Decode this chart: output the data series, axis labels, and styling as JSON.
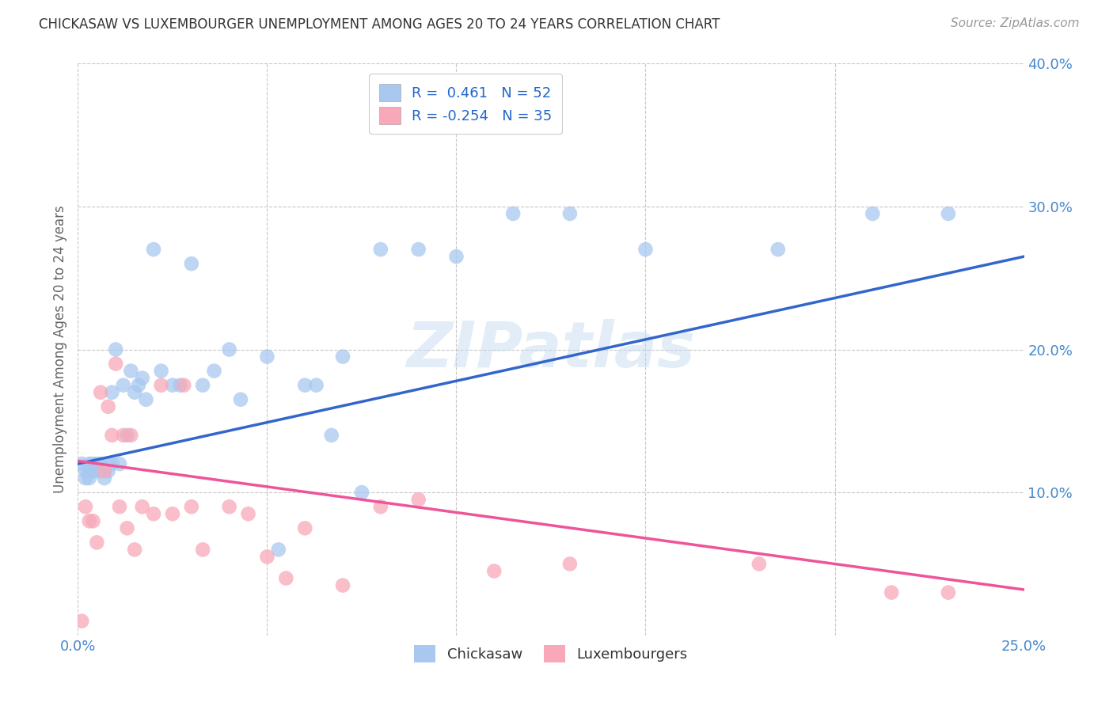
{
  "title": "CHICKASAW VS LUXEMBOURGER UNEMPLOYMENT AMONG AGES 20 TO 24 YEARS CORRELATION CHART",
  "source": "Source: ZipAtlas.com",
  "ylabel": "Unemployment Among Ages 20 to 24 years",
  "xlim": [
    0.0,
    0.25
  ],
  "ylim": [
    0.0,
    0.4
  ],
  "xticks": [
    0.0,
    0.05,
    0.1,
    0.15,
    0.2,
    0.25
  ],
  "yticks": [
    0.0,
    0.1,
    0.2,
    0.3,
    0.4
  ],
  "background_color": "#ffffff",
  "grid_color": "#c8c8c8",
  "watermark": "ZIPatlas",
  "chickasaw_color": "#a8c8f0",
  "luxembourger_color": "#f8a8b8",
  "chickasaw_line_color": "#3366cc",
  "luxembourger_line_color": "#ee5599",
  "chickasaw_R": "0.461",
  "chickasaw_N": "52",
  "luxembourger_R": "-0.254",
  "luxembourger_N": "35",
  "chickasaw_x": [
    0.001,
    0.002,
    0.002,
    0.003,
    0.003,
    0.003,
    0.004,
    0.004,
    0.005,
    0.005,
    0.006,
    0.006,
    0.007,
    0.007,
    0.008,
    0.008,
    0.009,
    0.009,
    0.01,
    0.011,
    0.012,
    0.013,
    0.014,
    0.015,
    0.016,
    0.017,
    0.018,
    0.02,
    0.022,
    0.025,
    0.027,
    0.03,
    0.033,
    0.036,
    0.04,
    0.043,
    0.05,
    0.053,
    0.06,
    0.063,
    0.067,
    0.07,
    0.075,
    0.08,
    0.09,
    0.1,
    0.115,
    0.13,
    0.15,
    0.185,
    0.21,
    0.23
  ],
  "chickasaw_y": [
    0.12,
    0.115,
    0.11,
    0.12,
    0.115,
    0.11,
    0.115,
    0.12,
    0.115,
    0.12,
    0.115,
    0.12,
    0.115,
    0.11,
    0.115,
    0.12,
    0.17,
    0.12,
    0.2,
    0.12,
    0.175,
    0.14,
    0.185,
    0.17,
    0.175,
    0.18,
    0.165,
    0.27,
    0.185,
    0.175,
    0.175,
    0.26,
    0.175,
    0.185,
    0.2,
    0.165,
    0.195,
    0.06,
    0.175,
    0.175,
    0.14,
    0.195,
    0.1,
    0.27,
    0.27,
    0.265,
    0.295,
    0.295,
    0.27,
    0.27,
    0.295,
    0.295
  ],
  "luxembourger_x": [
    0.001,
    0.002,
    0.003,
    0.004,
    0.005,
    0.006,
    0.007,
    0.008,
    0.009,
    0.01,
    0.011,
    0.012,
    0.013,
    0.014,
    0.015,
    0.017,
    0.02,
    0.022,
    0.025,
    0.028,
    0.03,
    0.033,
    0.04,
    0.045,
    0.05,
    0.055,
    0.06,
    0.07,
    0.08,
    0.09,
    0.11,
    0.13,
    0.18,
    0.215,
    0.23
  ],
  "luxembourger_y": [
    0.01,
    0.09,
    0.08,
    0.08,
    0.065,
    0.17,
    0.115,
    0.16,
    0.14,
    0.19,
    0.09,
    0.14,
    0.075,
    0.14,
    0.06,
    0.09,
    0.085,
    0.175,
    0.085,
    0.175,
    0.09,
    0.06,
    0.09,
    0.085,
    0.055,
    0.04,
    0.075,
    0.035,
    0.09,
    0.095,
    0.045,
    0.05,
    0.05,
    0.03,
    0.03
  ],
  "chickasaw_line_x0": 0.0,
  "chickasaw_line_x1": 0.25,
  "chickasaw_line_y0": 0.12,
  "chickasaw_line_y1": 0.265,
  "luxembourger_line_x0": 0.0,
  "luxembourger_line_x1": 0.25,
  "luxembourger_line_y0": 0.122,
  "luxembourger_line_y1": 0.032
}
